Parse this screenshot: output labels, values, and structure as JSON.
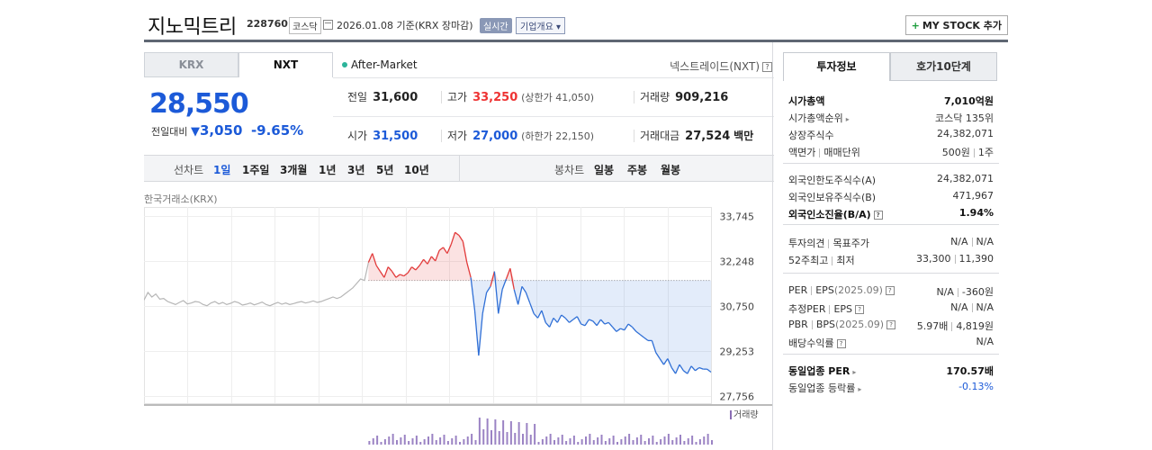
{
  "header": {
    "company": "지노믹트리",
    "code": "228760",
    "market": "코스닥",
    "date": "2026.01.08",
    "date_suffix": "기준(KRX 장마감)",
    "live_badge": "실시간",
    "corp_overview": "기업개요",
    "my_stock": "MY STOCK 추가"
  },
  "market_tabs": [
    "KRX",
    "NXT"
  ],
  "after_market": "After-Market",
  "nxt_info": "넥스트레이드(NXT)",
  "quote": {
    "price": "28,550",
    "change_label": "전일대비",
    "change_value": "3,050",
    "change_rate": "-9.65%",
    "prev_close": {
      "label": "전일",
      "value": "31,600"
    },
    "high": {
      "label": "고가",
      "value": "33,250",
      "sub": "(상한가 41,050)"
    },
    "volume": {
      "label": "거래량",
      "value": "909,216"
    },
    "open": {
      "label": "시가",
      "value": "31,500"
    },
    "low": {
      "label": "저가",
      "value": "27,000",
      "sub": "(하한가 22,150)"
    },
    "amount": {
      "label": "거래대금",
      "value": "27,524",
      "unit": "백만"
    }
  },
  "period_bar": {
    "line_label": "선차트",
    "line_periods": [
      "1일",
      "1주일",
      "3개월",
      "1년",
      "3년",
      "5년",
      "10년"
    ],
    "active": "1일",
    "candle_label": "봉차트",
    "candle_periods": [
      "일봉",
      "주봉",
      "월봉"
    ]
  },
  "chart_source": "한국거래소(KRX)",
  "chart_data": {
    "type": "line",
    "title": "",
    "y_ticks": [
      "33,745",
      "32,248",
      "30,750",
      "29,253",
      "27,756"
    ],
    "ylim": [
      27756,
      33745
    ],
    "baseline": 31600,
    "volume_label": "거래량",
    "series": [
      {
        "values": [
          30950,
          31200,
          31050,
          31150,
          30980,
          31000,
          30900,
          30850,
          30800,
          30870,
          30930,
          30820,
          30850,
          30900,
          30880,
          30800,
          30760,
          30850,
          30900,
          30820,
          30870,
          30800,
          30840,
          30900,
          30860,
          30780,
          30810,
          30850,
          30790,
          30830,
          30880,
          30800,
          30760,
          30820,
          30870,
          30810,
          30850,
          30800,
          30830,
          30870,
          30900,
          30850,
          30880,
          30920,
          30870,
          30900,
          30950,
          31000,
          31050,
          31000,
          31050,
          31150,
          31250,
          31350,
          31500,
          31650,
          31600,
          32200,
          32500,
          32100,
          31900,
          31700,
          32050,
          31900,
          31700,
          31800,
          31750,
          31850,
          32050,
          31950,
          32100,
          32300,
          32150,
          32400,
          32250,
          32600,
          32700,
          32500,
          32800,
          33200,
          33100,
          32900,
          32200,
          31700,
          30600,
          29100,
          30500,
          31200,
          31400,
          31900,
          30500,
          31300,
          31650,
          32000,
          31300,
          30800,
          31400,
          31200,
          30850,
          30500,
          30350,
          30600,
          30200,
          30050,
          30350,
          30200,
          30450,
          30350,
          30200,
          30300,
          30400,
          30150,
          30100,
          30300,
          30250,
          30100,
          30300,
          30150,
          30200,
          30050,
          29900,
          30000,
          29950,
          30150,
          30050,
          29900,
          29800,
          29700,
          29600,
          29600,
          29200,
          29000,
          28800,
          29000,
          28700,
          28500,
          28800,
          28600,
          28500,
          28750,
          28600,
          28700,
          28650,
          28650,
          28550
        ]
      }
    ]
  }
}
